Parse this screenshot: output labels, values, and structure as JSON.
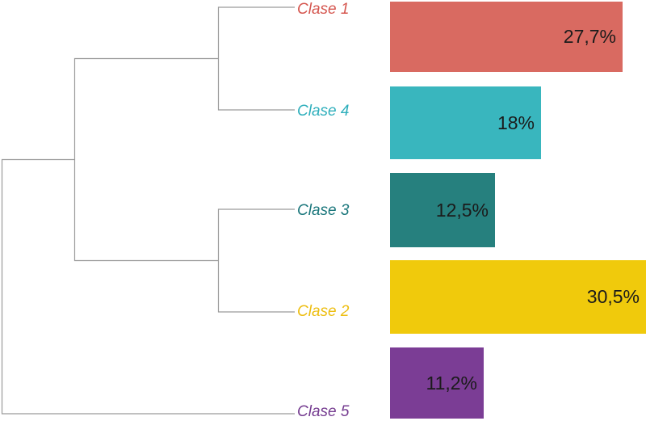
{
  "chart_data": {
    "type": "bar",
    "subtype": "dendrogram_with_horizontal_bars",
    "orientation": "horizontal",
    "title": "",
    "xlabel": "",
    "ylabel": "",
    "legend": "none",
    "grid": "off",
    "categories": [
      "Clase 1",
      "Clase 4",
      "Clase 3",
      "Clase 2",
      "Clase 5"
    ],
    "values": [
      27.7,
      18,
      12.5,
      30.5,
      11.2
    ],
    "value_labels": [
      "27,7%",
      "18%",
      "12,5%",
      "30,5%",
      "11,2%"
    ],
    "unit": "%",
    "decimal_separator": ",",
    "xlim": [
      0,
      30.5
    ],
    "bar_colors": [
      "#D96A61",
      "#39B6BE",
      "#26807E",
      "#F0CA0C",
      "#7B3D95"
    ],
    "label_colors": [
      "#D5564F",
      "#2FAFBC",
      "#1B777C",
      "#EDBE12",
      "#753C90"
    ],
    "value_label_color": "#1B1B1B",
    "link_color": "#9A9A9A",
    "background": "#FFFFFF",
    "hierarchy": {
      "description": "Dendrogram: root splits into [[Clase 1, Clase 4], [Clase 3, Clase 2]] on one branch and Clase 5 on the other",
      "cluster_a": [
        "Clase 1",
        "Clase 4"
      ],
      "cluster_b": [
        "Clase 3",
        "Clase 2"
      ],
      "outlier": "Clase 5"
    }
  }
}
